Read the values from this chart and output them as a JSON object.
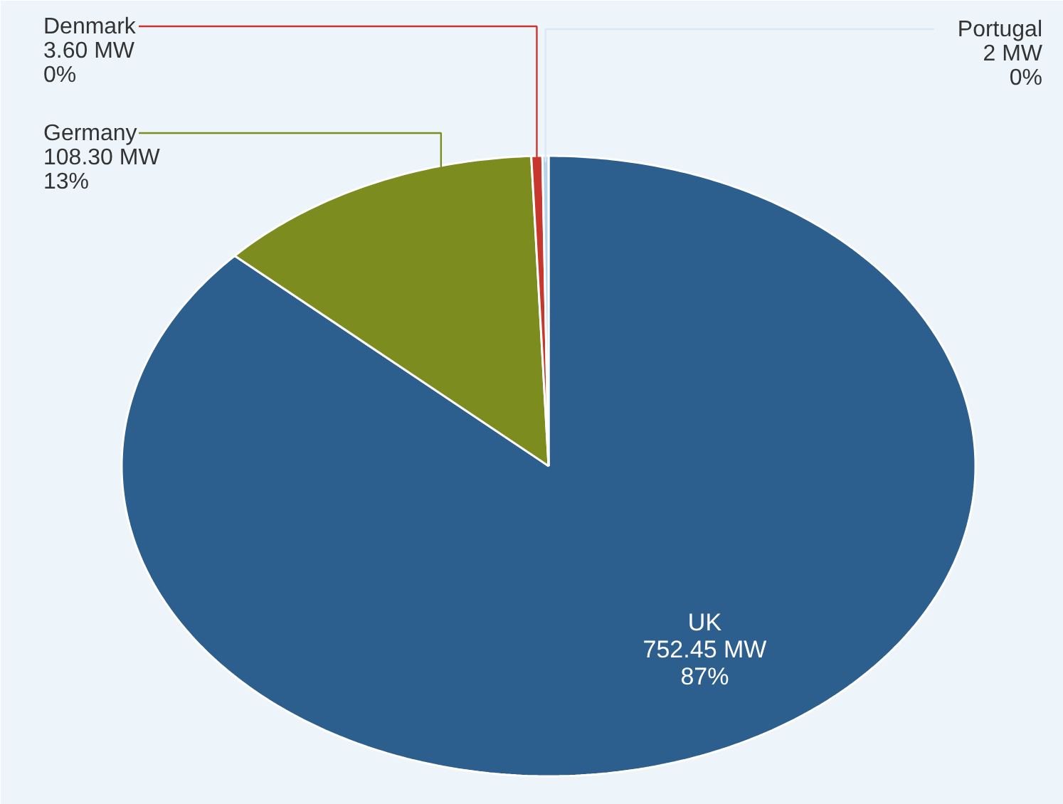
{
  "chart_data": {
    "type": "pie",
    "categories": [
      "UK",
      "Germany",
      "Denmark",
      "Portugal"
    ],
    "values": [
      752.45,
      108.3,
      3.6,
      2
    ],
    "colors": [
      "#2c5f8e",
      "#7d8c1f",
      "#c8372d",
      "#b9d3e6"
    ],
    "value_labels": [
      "752.45 MW\n87%",
      "108.30 MW\n13%",
      "3.60 MW\n0%",
      "2 MW\n0%"
    ]
  }
}
